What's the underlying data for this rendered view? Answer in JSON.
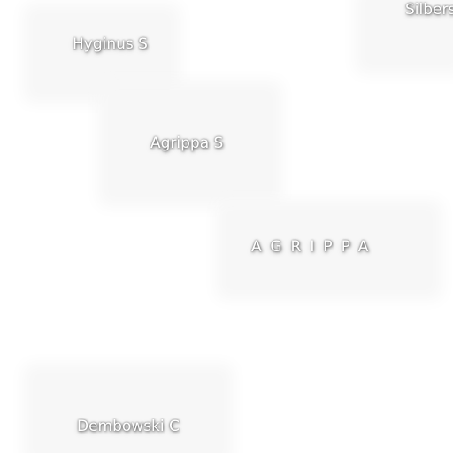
{
  "map": {
    "labels": {
      "hyginus_s": "Hyginus S",
      "silberschlag": "Silbers",
      "agrippa_s": "Agrippa S",
      "agrippa": "AGRIPPA",
      "dembowski_c": "Dembowski C"
    },
    "colors": {
      "background": "#ffffff",
      "label_text": "#ffffff",
      "label_halo": "#f7f7f7"
    }
  }
}
